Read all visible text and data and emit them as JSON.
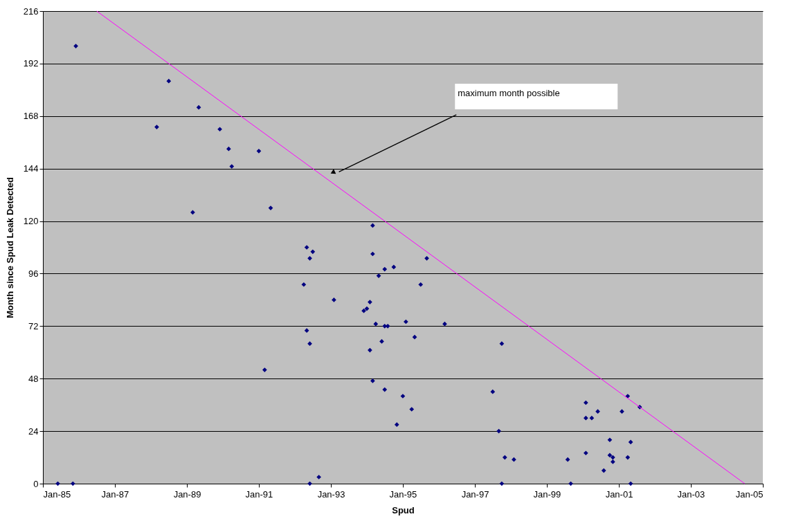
{
  "chart_data": {
    "type": "scatter",
    "xlabel": "Spud",
    "ylabel": "Month since Spud Leak Detected",
    "xlim": [
      "1985-01",
      "2005-01"
    ],
    "ylim": [
      0,
      216
    ],
    "xticks": [
      {
        "value": "1985-01",
        "label": "Jan-85"
      },
      {
        "value": "1987-01",
        "label": "Jan-87"
      },
      {
        "value": "1989-01",
        "label": "Jan-89"
      },
      {
        "value": "1991-01",
        "label": "Jan-91"
      },
      {
        "value": "1993-01",
        "label": "Jan-93"
      },
      {
        "value": "1995-01",
        "label": "Jan-95"
      },
      {
        "value": "1997-01",
        "label": "Jan-97"
      },
      {
        "value": "1999-01",
        "label": "Jan-99"
      },
      {
        "value": "2001-01",
        "label": "Jan-01"
      },
      {
        "value": "2003-01",
        "label": "Jan-03"
      },
      {
        "value": "2005-01",
        "label": "Jan-05"
      }
    ],
    "yticks": [
      0,
      24,
      48,
      72,
      96,
      120,
      144,
      168,
      192,
      216
    ],
    "grid": "y",
    "marker": "diamond",
    "series": [
      {
        "color": "#000080",
        "x": [
          "1985-12",
          "1985-06",
          "1985-11",
          "1988-07",
          "1988-03",
          "1989-05",
          "1989-03",
          "1989-12",
          "1990-03",
          "1990-04",
          "1991-01",
          "1991-05",
          "1991-03",
          "1994-03",
          "1992-05",
          "1992-07",
          "1992-06",
          "1994-03",
          "1994-07",
          "1994-10",
          "1994-05",
          "1995-09",
          "1992-04",
          "1995-07",
          "1993-02",
          "1994-02",
          "1994-01",
          "1993-12",
          "1994-04",
          "1994-07",
          "1994-08",
          "1995-02",
          "1996-03",
          "1992-05",
          "1995-05",
          "1994-06",
          "1992-06",
          "1994-02",
          "1994-03",
          "1994-07",
          "1995-01",
          "1995-04",
          "1994-11",
          "1992-06",
          "1992-09",
          "1997-10",
          "1997-07",
          "2000-02",
          "2001-04",
          "2001-08",
          "2000-06",
          "2001-02",
          "2000-02",
          "2000-04",
          "1997-09",
          "2000-10",
          "2001-05",
          "2000-02",
          "1997-11",
          "1998-02",
          "1999-08",
          "2000-10",
          "2000-11",
          "2000-11",
          "2001-04",
          "2000-08",
          "1997-10",
          "1999-09",
          "2001-05"
        ],
        "values": [
          200,
          0,
          0,
          184,
          163,
          172,
          124,
          162,
          153,
          145,
          152,
          126,
          52,
          118,
          108,
          106,
          103,
          105,
          98,
          99,
          95,
          103,
          91,
          91,
          84,
          83,
          80,
          79,
          73,
          72,
          72,
          74,
          73,
          70,
          67,
          65,
          64,
          61,
          47,
          43,
          40,
          34,
          27,
          0,
          3,
          64,
          42,
          37,
          40,
          35,
          33,
          33,
          30,
          30,
          24,
          20,
          19,
          14,
          12,
          11,
          11,
          13,
          12,
          10,
          12,
          6,
          0,
          0,
          0
        ]
      },
      {
        "type": "line",
        "color": "#ff00ff",
        "marker": "none",
        "x": [
          "1986-07",
          "2004-07"
        ],
        "values": [
          216,
          0
        ]
      }
    ],
    "annotations": [
      "maximum month possible"
    ]
  }
}
